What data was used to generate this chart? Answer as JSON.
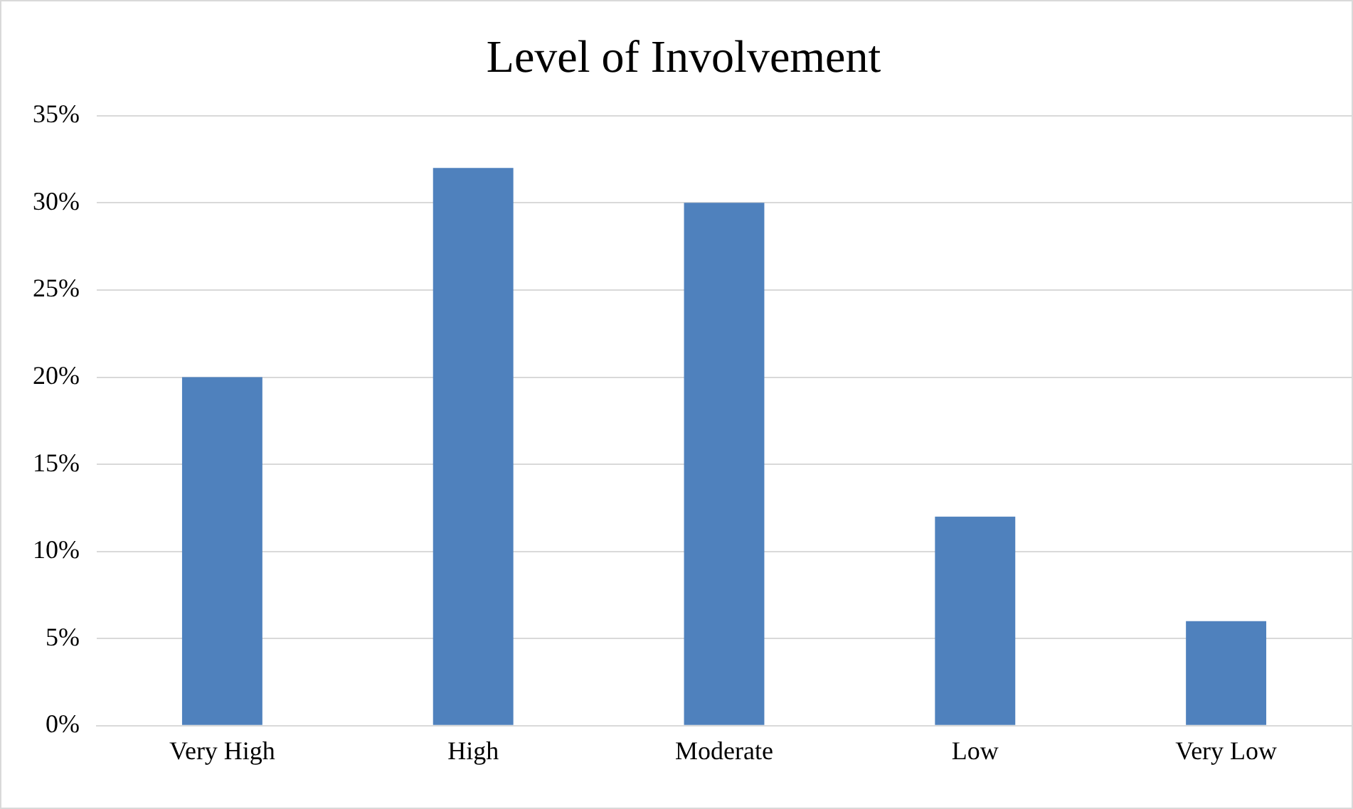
{
  "chart_data": {
    "type": "bar",
    "title": "Level of Involvement",
    "categories": [
      "Very High",
      "High",
      "Moderate",
      "Low",
      "Very Low"
    ],
    "values": [
      20,
      32,
      30,
      12,
      6
    ],
    "color": "#4f81bd",
    "ylim": [
      0,
      35
    ],
    "yticks": [
      {
        "value": 0,
        "label": "0%"
      },
      {
        "value": 5,
        "label": "5%"
      },
      {
        "value": 10,
        "label": "10%"
      },
      {
        "value": 15,
        "label": "15%"
      },
      {
        "value": 20,
        "label": "20%"
      },
      {
        "value": 25,
        "label": "25%"
      },
      {
        "value": 30,
        "label": "30%"
      },
      {
        "value": 35,
        "label": "35%"
      }
    ],
    "grid": "y",
    "legend": false
  }
}
